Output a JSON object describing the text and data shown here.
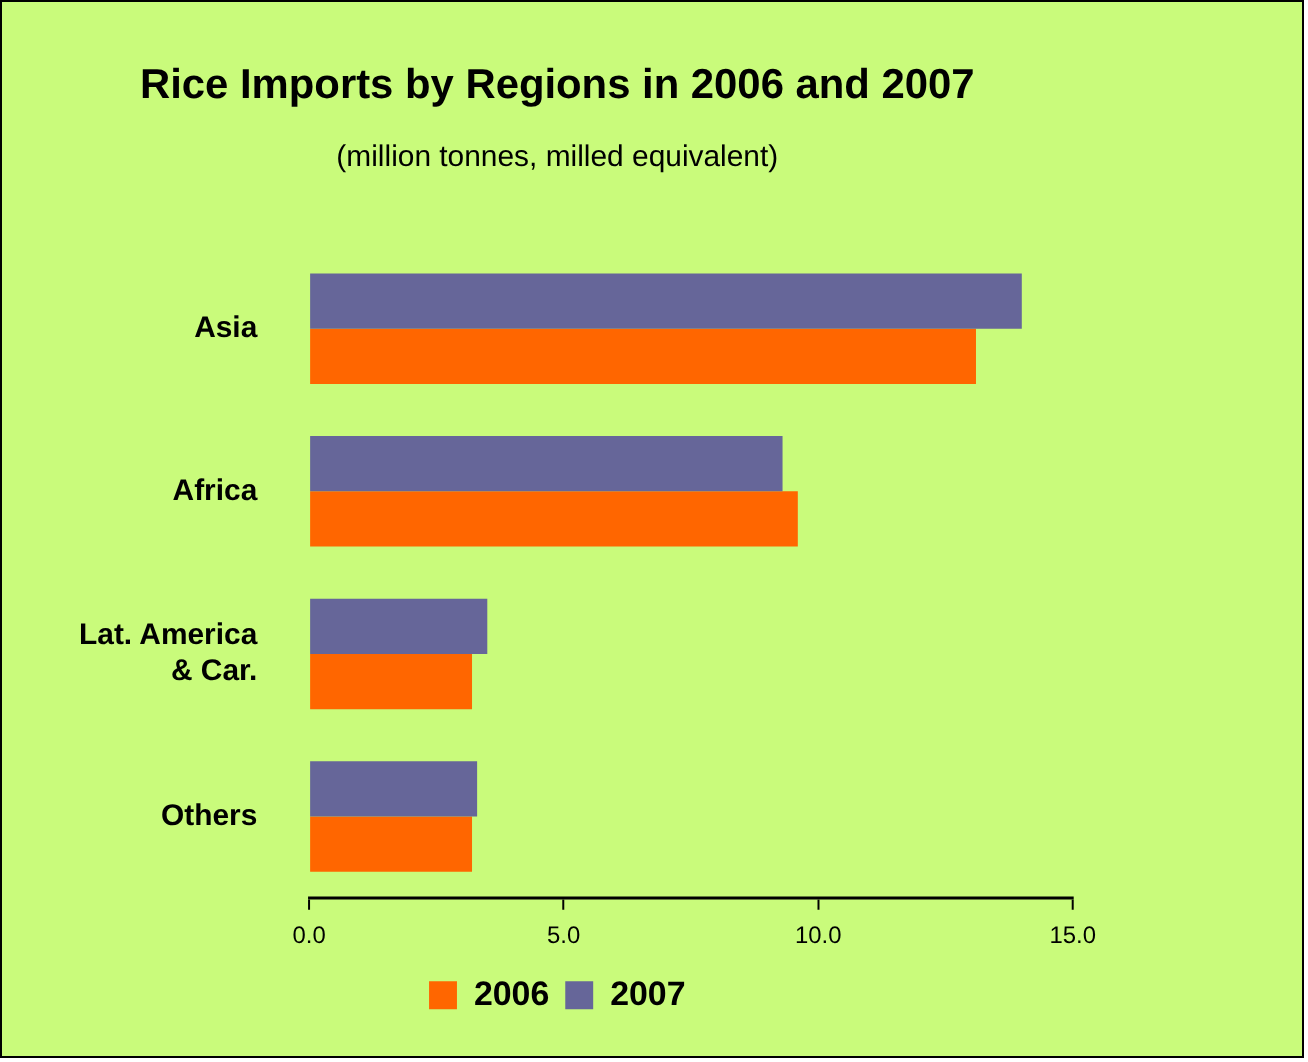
{
  "chart_data": {
    "type": "bar",
    "orientation": "horizontal",
    "title": "Rice Imports by Regions in 2006 and 2007",
    "subtitle": "(million tonnes, milled equivalent)",
    "categories": [
      "Asia",
      "Africa",
      "Lat. America & Car.",
      "Others"
    ],
    "series": [
      {
        "name": "2007",
        "color": "#666699",
        "values": [
          14.0,
          9.3,
          3.5,
          3.3
        ]
      },
      {
        "name": "2006",
        "color": "#ff6600",
        "values": [
          13.1,
          9.6,
          3.2,
          3.2
        ]
      }
    ],
    "xlim": [
      0,
      15
    ],
    "xticks": [
      {
        "value": 0,
        "label": "0.0"
      },
      {
        "value": 5,
        "label": "5.0"
      },
      {
        "value": 10,
        "label": "10.0"
      },
      {
        "value": 15,
        "label": "15.0"
      }
    ],
    "grid": false,
    "legend": "bottom"
  }
}
